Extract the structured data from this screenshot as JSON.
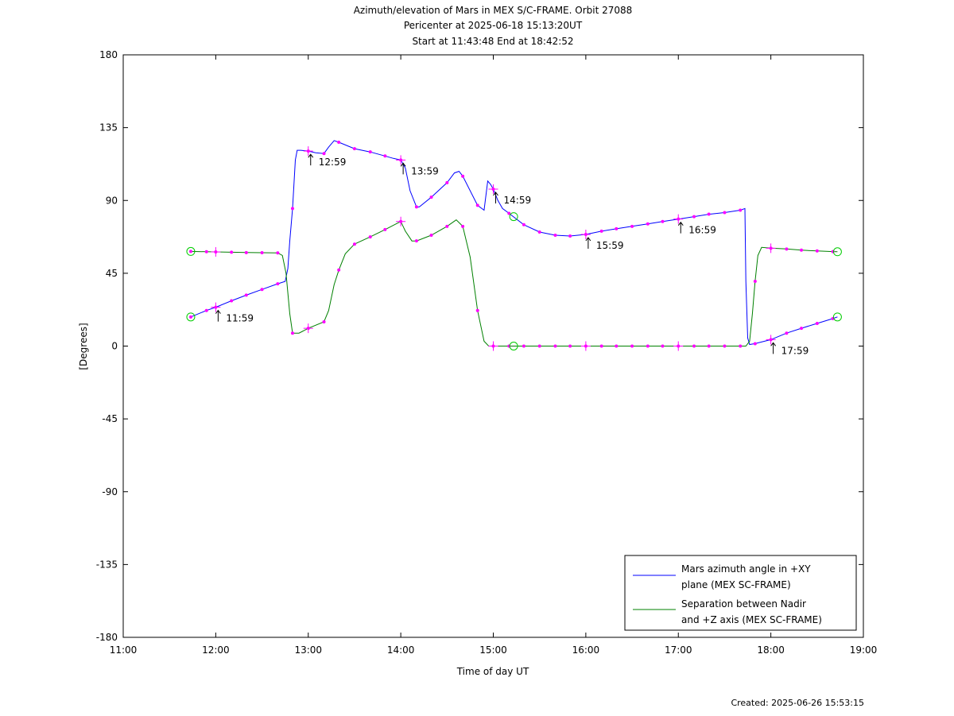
{
  "chart_data": {
    "type": "line",
    "title": "Azimuth/elevation of Mars in MEX S/C-FRAME.  Orbit 27088",
    "subtitle_1": "Pericenter at 2025-06-18 15:13:20UT",
    "subtitle_2": "Start at 11:43:48 End at 18:42:52",
    "xlabel": "Time of day UT",
    "ylabel": "[Degrees]",
    "xlim": [
      11,
      19
    ],
    "ylim": [
      -180,
      180
    ],
    "x_ticks": [
      {
        "v": 11,
        "label": "11:00"
      },
      {
        "v": 12,
        "label": "12:00"
      },
      {
        "v": 13,
        "label": "13:00"
      },
      {
        "v": 14,
        "label": "14:00"
      },
      {
        "v": 15,
        "label": "15:00"
      },
      {
        "v": 16,
        "label": "16:00"
      },
      {
        "v": 17,
        "label": "17:00"
      },
      {
        "v": 18,
        "label": "18:00"
      },
      {
        "v": 19,
        "label": "19:00"
      }
    ],
    "y_ticks": [
      {
        "v": 180,
        "label": "180"
      },
      {
        "v": 135,
        "label": "135"
      },
      {
        "v": 90,
        "label": "90"
      },
      {
        "v": 45,
        "label": "45"
      },
      {
        "v": 0,
        "label": "0"
      },
      {
        "v": -45,
        "label": "-45"
      },
      {
        "v": -90,
        "label": "-90"
      },
      {
        "v": -135,
        "label": "-135"
      },
      {
        "v": -180,
        "label": "-180"
      }
    ],
    "grid": false,
    "legend_position": "bottom-right",
    "series": [
      {
        "name": "Mars azimuth angle in +XY\nplane (MEX SC-FRAME)",
        "legend_line1": "Mars azimuth angle in +XY",
        "legend_line2": "plane (MEX SC-FRAME)",
        "color": "#0000ff",
        "points": [
          [
            11.73,
            18
          ],
          [
            11.9,
            22
          ],
          [
            12.0,
            24
          ],
          [
            12.17,
            28
          ],
          [
            12.33,
            31.5
          ],
          [
            12.5,
            35
          ],
          [
            12.67,
            38.5
          ],
          [
            12.75,
            40
          ],
          [
            12.78,
            48
          ],
          [
            12.8,
            65
          ],
          [
            12.83,
            85
          ],
          [
            12.86,
            115
          ],
          [
            12.88,
            121
          ],
          [
            12.92,
            121
          ],
          [
            13.0,
            120.5
          ],
          [
            13.08,
            119.5
          ],
          [
            13.17,
            119
          ],
          [
            13.22,
            123
          ],
          [
            13.28,
            127
          ],
          [
            13.33,
            126
          ],
          [
            13.5,
            122
          ],
          [
            13.67,
            120
          ],
          [
            13.83,
            117.5
          ],
          [
            13.92,
            116
          ],
          [
            14.0,
            115
          ],
          [
            14.05,
            110
          ],
          [
            14.1,
            96
          ],
          [
            14.17,
            86
          ],
          [
            14.2,
            86
          ],
          [
            14.33,
            92
          ],
          [
            14.5,
            101
          ],
          [
            14.58,
            107
          ],
          [
            14.63,
            108
          ],
          [
            14.67,
            105
          ],
          [
            14.83,
            87
          ],
          [
            14.9,
            84
          ],
          [
            14.94,
            102
          ],
          [
            14.97,
            100
          ],
          [
            15.0,
            97
          ],
          [
            15.05,
            90
          ],
          [
            15.1,
            85
          ],
          [
            15.17,
            82
          ],
          [
            15.33,
            75
          ],
          [
            15.5,
            70.5
          ],
          [
            15.67,
            68.5
          ],
          [
            15.83,
            68
          ],
          [
            16.0,
            69
          ],
          [
            16.17,
            71
          ],
          [
            16.33,
            72.5
          ],
          [
            16.5,
            74
          ],
          [
            16.67,
            75.5
          ],
          [
            16.83,
            77
          ],
          [
            17.0,
            78.5
          ],
          [
            17.17,
            80
          ],
          [
            17.33,
            81.5
          ],
          [
            17.5,
            82.5
          ],
          [
            17.67,
            84
          ],
          [
            17.72,
            85
          ],
          [
            17.73,
            40
          ],
          [
            17.75,
            5
          ],
          [
            17.77,
            1
          ],
          [
            17.83,
            1.5
          ],
          [
            18.0,
            4
          ],
          [
            18.17,
            8
          ],
          [
            18.33,
            11
          ],
          [
            18.5,
            14
          ],
          [
            18.67,
            17
          ],
          [
            18.72,
            18
          ]
        ]
      },
      {
        "name": "Separation between Nadir\nand +Z axis (MEX SC-FRAME)",
        "legend_line1": "Separation between Nadir",
        "legend_line2": "and +Z axis (MEX SC-FRAME)",
        "color": "#008000",
        "points": [
          [
            11.73,
            58.5
          ],
          [
            11.9,
            58.3
          ],
          [
            12.0,
            58.2
          ],
          [
            12.17,
            58
          ],
          [
            12.33,
            57.8
          ],
          [
            12.5,
            57.7
          ],
          [
            12.67,
            57.6
          ],
          [
            12.72,
            56
          ],
          [
            12.76,
            45
          ],
          [
            12.8,
            20
          ],
          [
            12.83,
            8
          ],
          [
            12.9,
            8
          ],
          [
            13.0,
            11
          ],
          [
            13.17,
            15
          ],
          [
            13.22,
            22
          ],
          [
            13.28,
            38
          ],
          [
            13.33,
            47
          ],
          [
            13.4,
            57
          ],
          [
            13.5,
            63
          ],
          [
            13.67,
            67.5
          ],
          [
            13.83,
            72
          ],
          [
            14.0,
            77
          ],
          [
            14.05,
            71
          ],
          [
            14.12,
            65
          ],
          [
            14.17,
            65
          ],
          [
            14.33,
            68.5
          ],
          [
            14.5,
            74
          ],
          [
            14.6,
            78
          ],
          [
            14.67,
            74
          ],
          [
            14.75,
            55
          ],
          [
            14.83,
            22
          ],
          [
            14.9,
            3
          ],
          [
            14.95,
            0
          ],
          [
            15.0,
            0
          ],
          [
            15.23,
            0
          ],
          [
            15.5,
            0
          ],
          [
            16.0,
            0
          ],
          [
            16.5,
            0
          ],
          [
            17.0,
            0
          ],
          [
            17.5,
            0
          ],
          [
            17.73,
            0
          ],
          [
            17.77,
            3
          ],
          [
            17.8,
            20
          ],
          [
            17.83,
            40
          ],
          [
            17.86,
            56
          ],
          [
            17.9,
            61
          ],
          [
            18.0,
            60.5
          ],
          [
            18.17,
            60
          ],
          [
            18.33,
            59.3
          ],
          [
            18.5,
            58.8
          ],
          [
            18.67,
            58.4
          ],
          [
            18.72,
            58.3
          ]
        ]
      }
    ],
    "marker_times": [
      11.73,
      11.9,
      12.0,
      12.17,
      12.33,
      12.5,
      12.67,
      12.83,
      13.0,
      13.17,
      13.33,
      13.5,
      13.67,
      13.83,
      14.0,
      14.17,
      14.33,
      14.5,
      14.67,
      14.83,
      15.0,
      15.17,
      15.33,
      15.5,
      15.67,
      15.83,
      16.0,
      16.17,
      16.33,
      16.5,
      16.67,
      16.83,
      17.0,
      17.17,
      17.33,
      17.5,
      17.67,
      17.83,
      18.0,
      18.17,
      18.33,
      18.5,
      18.67
    ],
    "hour_crosses": [
      12.0,
      13.0,
      14.0,
      15.0,
      16.0,
      17.0,
      18.0
    ],
    "circle_markers": [
      {
        "x": 11.73,
        "y": 58.5
      },
      {
        "x": 11.73,
        "y": 18
      },
      {
        "x": 15.22,
        "y": 80
      },
      {
        "x": 15.22,
        "y": 0
      },
      {
        "x": 18.72,
        "y": 58.3
      },
      {
        "x": 18.72,
        "y": 18
      }
    ],
    "annotations": [
      {
        "x": 12.0,
        "y": 24,
        "text": "11:59"
      },
      {
        "x": 13.0,
        "y": 120.5,
        "text": "12:59"
      },
      {
        "x": 14.0,
        "y": 115,
        "text": "13:59"
      },
      {
        "x": 15.0,
        "y": 97,
        "text": "14:59"
      },
      {
        "x": 16.0,
        "y": 69,
        "text": "15:59"
      },
      {
        "x": 17.0,
        "y": 78.5,
        "text": "16:59"
      },
      {
        "x": 18.0,
        "y": 4,
        "text": "17:59"
      }
    ],
    "marker_color": "#ff00ff",
    "circle_color": "#00cc00"
  },
  "footer": {
    "created": "Created: 2025-06-26 15:53:15"
  }
}
